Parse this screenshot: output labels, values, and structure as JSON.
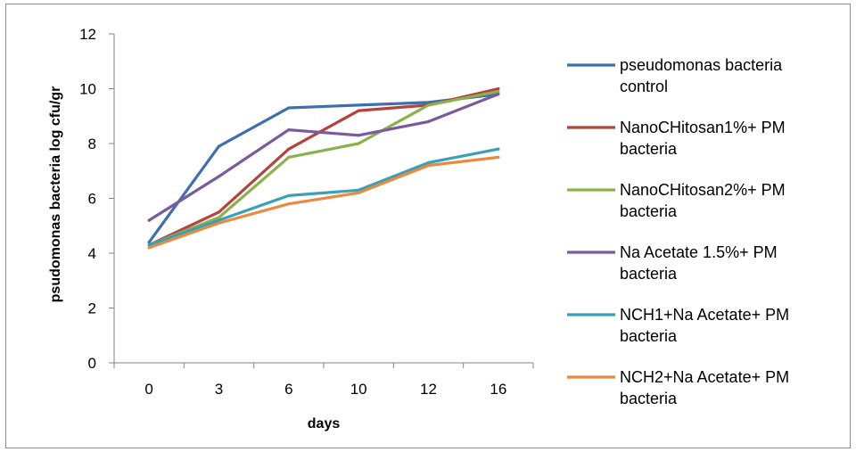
{
  "chart_data": {
    "type": "line",
    "title": "",
    "xlabel": "days",
    "ylabel": "psudomonas bacteria log cfu/gr",
    "categories": [
      "0",
      "3",
      "6",
      "10",
      "12",
      "16"
    ],
    "ylim": [
      0,
      12
    ],
    "yticks": [
      "0",
      "2",
      "4",
      "6",
      "8",
      "10",
      "12"
    ],
    "grid": false,
    "legend_position": "right",
    "series": [
      {
        "name": "pseudomonas bacteria control",
        "legend_lines": [
          "pseudomonas bacteria",
          "control"
        ],
        "color": "#3f6faf",
        "values": [
          4.4,
          7.9,
          9.3,
          9.4,
          9.5,
          9.8
        ]
      },
      {
        "name": "NanoCHitosan1%+ PM bacteria",
        "legend_lines": [
          "NanoCHitosan1%+ PM",
          "bacteria"
        ],
        "color": "#b4433c",
        "values": [
          4.3,
          5.5,
          7.8,
          9.2,
          9.4,
          10.0
        ]
      },
      {
        "name": "NanoCHitosan2%+ PM bacteria",
        "legend_lines": [
          "NanoCHitosan2%+ PM",
          "bacteria"
        ],
        "color": "#8ab14a",
        "values": [
          4.3,
          5.3,
          7.5,
          8.0,
          9.4,
          9.9
        ]
      },
      {
        "name": "Na Acetate 1.5%+ PM bacteria",
        "legend_lines": [
          "Na Acetate 1.5%+ PM",
          "bacteria"
        ],
        "color": "#7a5a9e",
        "values": [
          5.2,
          6.8,
          8.5,
          8.3,
          8.8,
          9.8
        ]
      },
      {
        "name": "NCH1+Na Acetate+ PM bacteria",
        "legend_lines": [
          "NCH1+Na Acetate+ PM",
          "bacteria"
        ],
        "color": "#3aa0b8",
        "values": [
          4.3,
          5.2,
          6.1,
          6.3,
          7.3,
          7.8
        ]
      },
      {
        "name": "NCH2+Na Acetate+ PM bacteria",
        "legend_lines": [
          "NCH2+Na Acetate+ PM",
          "bacteria"
        ],
        "color": "#ea8a3e",
        "values": [
          4.2,
          5.1,
          5.8,
          6.2,
          7.2,
          7.5
        ]
      }
    ]
  }
}
